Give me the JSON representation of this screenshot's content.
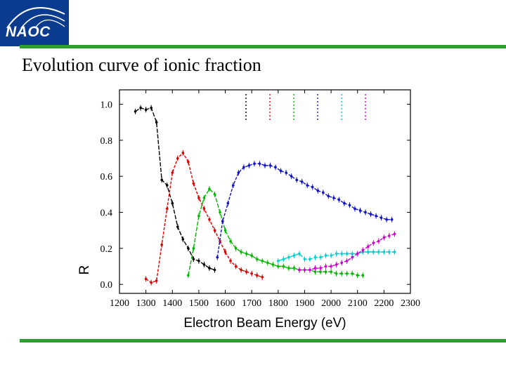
{
  "logo": {
    "text": "NAOC"
  },
  "slide": {
    "title": "Evolution curve of ionic fraction"
  },
  "colors": {
    "accent_green": "#2e9e2e",
    "logo_blue": "#0b3b8f"
  },
  "chart_data": {
    "type": "line",
    "xlabel": "Electron Beam Energy (eV)",
    "ylabel": "R",
    "xlim": [
      1200,
      2300
    ],
    "ylim": [
      -0.05,
      1.08
    ],
    "xticks": [
      1200,
      1300,
      1400,
      1500,
      1600,
      1700,
      1800,
      1900,
      2000,
      2100,
      2200,
      2300
    ],
    "yticks": [
      0.0,
      0.2,
      0.4,
      0.6,
      0.8,
      1.0
    ],
    "ytick_labels": [
      "0.0",
      "0.2",
      "0.4",
      "0.6",
      "0.8",
      "1.0"
    ],
    "grid": false,
    "legend": "top-right",
    "series": [
      {
        "color": "#000000",
        "x": [
          1260,
          1280,
          1300,
          1320,
          1340,
          1360,
          1380,
          1400,
          1420,
          1440,
          1460,
          1480,
          1500,
          1520,
          1540,
          1560
        ],
        "y": [
          0.96,
          0.98,
          0.97,
          0.98,
          0.9,
          0.58,
          0.55,
          0.45,
          0.32,
          0.25,
          0.2,
          0.14,
          0.13,
          0.11,
          0.09,
          0.08
        ]
      },
      {
        "color": "#e00000",
        "x": [
          1300,
          1320,
          1340,
          1360,
          1380,
          1400,
          1420,
          1440,
          1460,
          1480,
          1500,
          1520,
          1540,
          1560,
          1580,
          1600,
          1620,
          1640,
          1660,
          1680,
          1700,
          1720,
          1740
        ],
        "y": [
          0.03,
          0.01,
          0.02,
          0.22,
          0.42,
          0.62,
          0.7,
          0.73,
          0.68,
          0.56,
          0.48,
          0.42,
          0.36,
          0.3,
          0.24,
          0.18,
          0.13,
          0.1,
          0.08,
          0.07,
          0.06,
          0.05,
          0.04
        ]
      },
      {
        "color": "#00b800",
        "x": [
          1460,
          1480,
          1500,
          1520,
          1540,
          1560,
          1580,
          1600,
          1620,
          1640,
          1660,
          1680,
          1700,
          1720,
          1740,
          1760,
          1780,
          1800,
          1820,
          1840,
          1860,
          1880,
          1900,
          1920,
          1940,
          1960,
          1980,
          2000,
          2020,
          2040,
          2060,
          2080,
          2100,
          2120
        ],
        "y": [
          0.05,
          0.2,
          0.38,
          0.48,
          0.53,
          0.5,
          0.4,
          0.3,
          0.24,
          0.2,
          0.18,
          0.17,
          0.16,
          0.14,
          0.13,
          0.12,
          0.11,
          0.1,
          0.1,
          0.09,
          0.09,
          0.08,
          0.08,
          0.08,
          0.07,
          0.07,
          0.07,
          0.07,
          0.06,
          0.06,
          0.06,
          0.06,
          0.05,
          0.05
        ]
      },
      {
        "color": "#1010c8",
        "x": [
          1570,
          1590,
          1610,
          1630,
          1650,
          1670,
          1690,
          1710,
          1730,
          1750,
          1770,
          1790,
          1810,
          1830,
          1850,
          1870,
          1890,
          1910,
          1930,
          1950,
          1970,
          1990,
          2010,
          2030,
          2050,
          2070,
          2090,
          2110,
          2130,
          2150,
          2170,
          2190,
          2210,
          2230
        ],
        "y": [
          0.15,
          0.35,
          0.45,
          0.55,
          0.62,
          0.65,
          0.66,
          0.67,
          0.67,
          0.66,
          0.66,
          0.65,
          0.63,
          0.62,
          0.6,
          0.58,
          0.57,
          0.55,
          0.54,
          0.52,
          0.51,
          0.49,
          0.48,
          0.47,
          0.45,
          0.44,
          0.42,
          0.41,
          0.4,
          0.39,
          0.38,
          0.37,
          0.36,
          0.36
        ]
      },
      {
        "color": "#00d0d0",
        "x": [
          1800,
          1820,
          1840,
          1860,
          1880,
          1900,
          1920,
          1940,
          1960,
          1980,
          2000,
          2020,
          2040,
          2060,
          2080,
          2100,
          2120,
          2140,
          2160,
          2180,
          2200,
          2220,
          2240
        ],
        "y": [
          0.13,
          0.14,
          0.15,
          0.16,
          0.17,
          0.14,
          0.14,
          0.15,
          0.15,
          0.16,
          0.16,
          0.17,
          0.17,
          0.17,
          0.17,
          0.17,
          0.18,
          0.18,
          0.18,
          0.18,
          0.18,
          0.18,
          0.18
        ]
      },
      {
        "color": "#d000d0",
        "x": [
          1880,
          1900,
          1920,
          1940,
          1960,
          1980,
          2000,
          2020,
          2040,
          2060,
          2080,
          2100,
          2120,
          2140,
          2160,
          2180,
          2200,
          2220,
          2240
        ],
        "y": [
          0.08,
          0.08,
          0.08,
          0.09,
          0.09,
          0.1,
          0.1,
          0.11,
          0.12,
          0.13,
          0.15,
          0.17,
          0.19,
          0.21,
          0.23,
          0.24,
          0.26,
          0.27,
          0.28
        ]
      }
    ]
  }
}
